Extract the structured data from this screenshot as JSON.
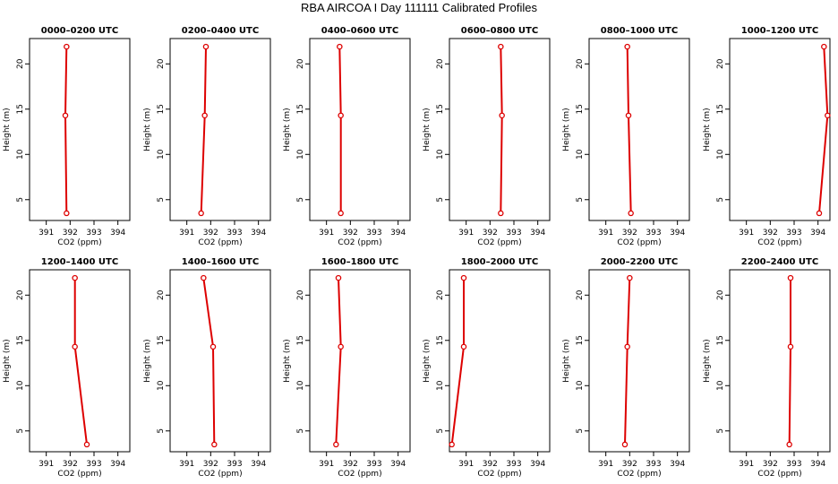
{
  "title": "RBA AIRCOA I  Day 111111  Calibrated Profiles",
  "chart_data": [
    {
      "type": "line",
      "title": "0000–0200 UTC",
      "xlabel": "CO2 (ppm)",
      "ylabel": "Height (m)",
      "xlim": [
        390.3,
        394.5
      ],
      "ylim": [
        2.7,
        22.8
      ],
      "xticks": [
        391,
        392,
        393,
        394
      ],
      "yticks": [
        5,
        10,
        15,
        20
      ],
      "grid": false,
      "color": "#dd0000",
      "x": [
        391.85,
        391.8,
        391.85
      ],
      "y": [
        3.5,
        14.3,
        21.9
      ]
    },
    {
      "type": "line",
      "title": "0200–0400 UTC",
      "xlabel": "CO2 (ppm)",
      "ylabel": "Height (m)",
      "xlim": [
        390.3,
        394.5
      ],
      "ylim": [
        2.7,
        22.8
      ],
      "xticks": [
        391,
        392,
        393,
        394
      ],
      "yticks": [
        5,
        10,
        15,
        20
      ],
      "grid": false,
      "color": "#dd0000",
      "x": [
        391.6,
        391.75,
        391.8
      ],
      "y": [
        3.5,
        14.3,
        21.9
      ]
    },
    {
      "type": "line",
      "title": "0400–0600 UTC",
      "xlabel": "CO2 (ppm)",
      "ylabel": "Height (m)",
      "xlim": [
        390.3,
        394.5
      ],
      "ylim": [
        2.7,
        22.8
      ],
      "xticks": [
        391,
        392,
        393,
        394
      ],
      "yticks": [
        5,
        10,
        15,
        20
      ],
      "grid": false,
      "color": "#dd0000",
      "x": [
        391.6,
        391.6,
        391.55
      ],
      "y": [
        3.5,
        14.3,
        21.9
      ]
    },
    {
      "type": "line",
      "title": "0600–0800 UTC",
      "xlabel": "CO2 (ppm)",
      "ylabel": "Height (m)",
      "xlim": [
        390.3,
        394.5
      ],
      "ylim": [
        2.7,
        22.8
      ],
      "xticks": [
        391,
        392,
        393,
        394
      ],
      "yticks": [
        5,
        10,
        15,
        20
      ],
      "grid": false,
      "color": "#dd0000",
      "x": [
        392.45,
        392.5,
        392.45
      ],
      "y": [
        3.5,
        14.3,
        21.9
      ]
    },
    {
      "type": "line",
      "title": "0800–1000 UTC",
      "xlabel": "CO2 (ppm)",
      "ylabel": "Height (m)",
      "xlim": [
        390.3,
        394.5
      ],
      "ylim": [
        2.7,
        22.8
      ],
      "xticks": [
        391,
        392,
        393,
        394
      ],
      "yticks": [
        5,
        10,
        15,
        20
      ],
      "grid": false,
      "color": "#dd0000",
      "x": [
        392.05,
        391.95,
        391.9
      ],
      "y": [
        3.5,
        14.3,
        21.9
      ]
    },
    {
      "type": "line",
      "title": "1000–1200 UTC",
      "xlabel": "CO2 (ppm)",
      "ylabel": "Height (m)",
      "xlim": [
        390.3,
        394.5
      ],
      "ylim": [
        2.7,
        22.8
      ],
      "xticks": [
        391,
        392,
        393,
        394
      ],
      "yticks": [
        5,
        10,
        15,
        20
      ],
      "grid": false,
      "color": "#dd0000",
      "x": [
        394.05,
        394.4,
        394.25
      ],
      "y": [
        3.5,
        14.3,
        21.9
      ]
    },
    {
      "type": "line",
      "title": "1200–1400 UTC",
      "xlabel": "CO2 (ppm)",
      "ylabel": "Height (m)",
      "xlim": [
        390.3,
        394.5
      ],
      "ylim": [
        2.7,
        22.8
      ],
      "xticks": [
        391,
        392,
        393,
        394
      ],
      "yticks": [
        5,
        10,
        15,
        20
      ],
      "grid": false,
      "color": "#dd0000",
      "x": [
        392.7,
        392.2,
        392.2
      ],
      "y": [
        3.5,
        14.3,
        21.9
      ]
    },
    {
      "type": "line",
      "title": "1400–1600 UTC",
      "xlabel": "CO2 (ppm)",
      "ylabel": "Height (m)",
      "xlim": [
        390.3,
        394.5
      ],
      "ylim": [
        2.7,
        22.8
      ],
      "xticks": [
        391,
        392,
        393,
        394
      ],
      "yticks": [
        5,
        10,
        15,
        20
      ],
      "grid": false,
      "color": "#dd0000",
      "x": [
        392.15,
        392.1,
        391.7
      ],
      "y": [
        3.5,
        14.3,
        21.9
      ]
    },
    {
      "type": "line",
      "title": "1600–1800 UTC",
      "xlabel": "CO2 (ppm)",
      "ylabel": "Height (m)",
      "xlim": [
        390.3,
        394.5
      ],
      "ylim": [
        2.7,
        22.8
      ],
      "xticks": [
        391,
        392,
        393,
        394
      ],
      "yticks": [
        5,
        10,
        15,
        20
      ],
      "grid": false,
      "color": "#dd0000",
      "x": [
        391.4,
        391.6,
        391.5
      ],
      "y": [
        3.5,
        14.3,
        21.9
      ]
    },
    {
      "type": "line",
      "title": "1800–2000 UTC",
      "xlabel": "CO2 (ppm)",
      "ylabel": "Height (m)",
      "xlim": [
        390.3,
        394.5
      ],
      "ylim": [
        2.7,
        22.8
      ],
      "xticks": [
        391,
        392,
        393,
        394
      ],
      "yticks": [
        5,
        10,
        15,
        20
      ],
      "grid": false,
      "color": "#dd0000",
      "x": [
        390.4,
        390.9,
        390.9
      ],
      "y": [
        3.5,
        14.3,
        21.9
      ]
    },
    {
      "type": "line",
      "title": "2000–2200 UTC",
      "xlabel": "CO2 (ppm)",
      "ylabel": "Height (m)",
      "xlim": [
        390.3,
        394.5
      ],
      "ylim": [
        2.7,
        22.8
      ],
      "xticks": [
        391,
        392,
        393,
        394
      ],
      "yticks": [
        5,
        10,
        15,
        20
      ],
      "grid": false,
      "color": "#dd0000",
      "x": [
        391.8,
        391.9,
        392.0
      ],
      "y": [
        3.5,
        14.3,
        21.9
      ]
    },
    {
      "type": "line",
      "title": "2200–2400 UTC",
      "xlabel": "CO2 (ppm)",
      "ylabel": "Height (m)",
      "xlim": [
        390.3,
        394.5
      ],
      "ylim": [
        2.7,
        22.8
      ],
      "xticks": [
        391,
        392,
        393,
        394
      ],
      "yticks": [
        5,
        10,
        15,
        20
      ],
      "grid": false,
      "color": "#dd0000",
      "x": [
        392.8,
        392.85,
        392.85
      ],
      "y": [
        3.5,
        14.3,
        21.9
      ]
    }
  ]
}
